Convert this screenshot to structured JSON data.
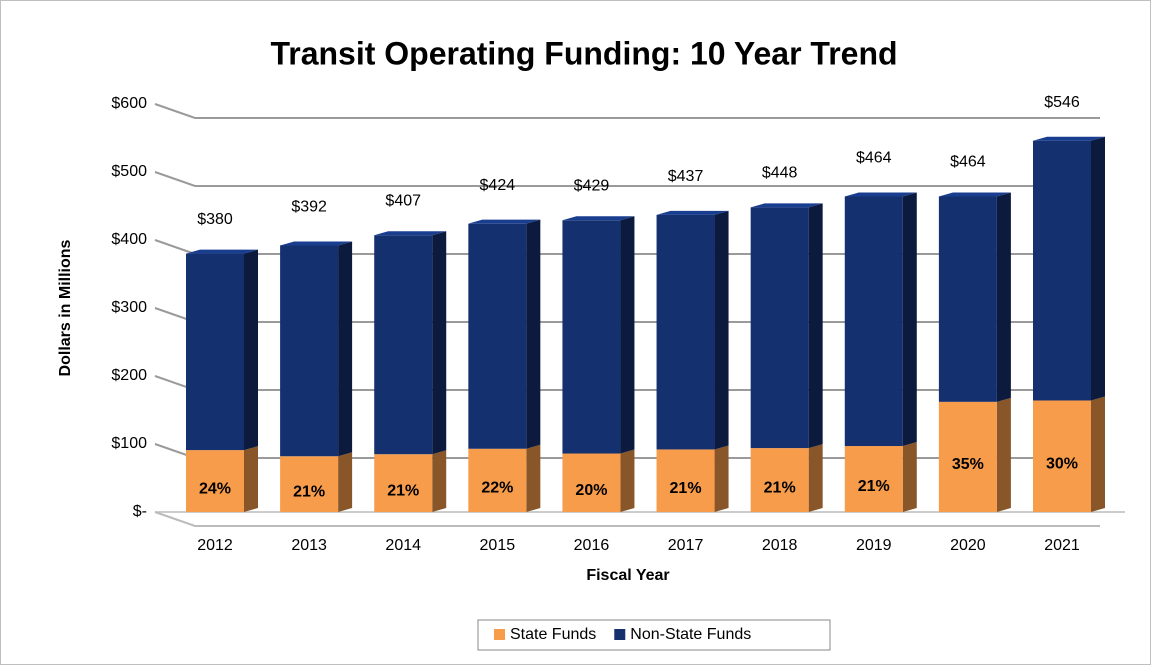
{
  "chart_data": {
    "type": "stacked_bar",
    "title": "Transit Operating Funding: 10 Year Trend",
    "x_label": "Fiscal Year",
    "y_label": "Dollars in Millions",
    "categories": [
      "2012",
      "2013",
      "2014",
      "2015",
      "2016",
      "2017",
      "2018",
      "2019",
      "2020",
      "2021"
    ],
    "series": [
      {
        "name": "State Funds",
        "color": "#f79c4b",
        "values": [
          91,
          82,
          85,
          93,
          86,
          92,
          94,
          97,
          162,
          164
        ],
        "value_labels": [
          "24%",
          "21%",
          "21%",
          "22%",
          "20%",
          "21%",
          "21%",
          "21%",
          "35%",
          "30%"
        ]
      },
      {
        "name": "Non-State Funds",
        "color": "#14306e",
        "values": [
          289,
          310,
          322,
          331,
          343,
          345,
          354,
          367,
          302,
          382
        ]
      }
    ],
    "total_labels": [
      "$380",
      "$392",
      "$407",
      "$424",
      "$429",
      "$437",
      "$448",
      "$464",
      "$464",
      "$546"
    ],
    "ylim": [
      0,
      600
    ],
    "yticks": [
      {
        "value": 0,
        "label": "$-"
      },
      {
        "value": 100,
        "label": "$100"
      },
      {
        "value": 200,
        "label": "$200"
      },
      {
        "value": 300,
        "label": "$300"
      },
      {
        "value": 400,
        "label": "$400"
      },
      {
        "value": 500,
        "label": "$500"
      },
      {
        "value": 600,
        "label": "$600"
      }
    ],
    "grid": true,
    "legend": "bottom"
  }
}
